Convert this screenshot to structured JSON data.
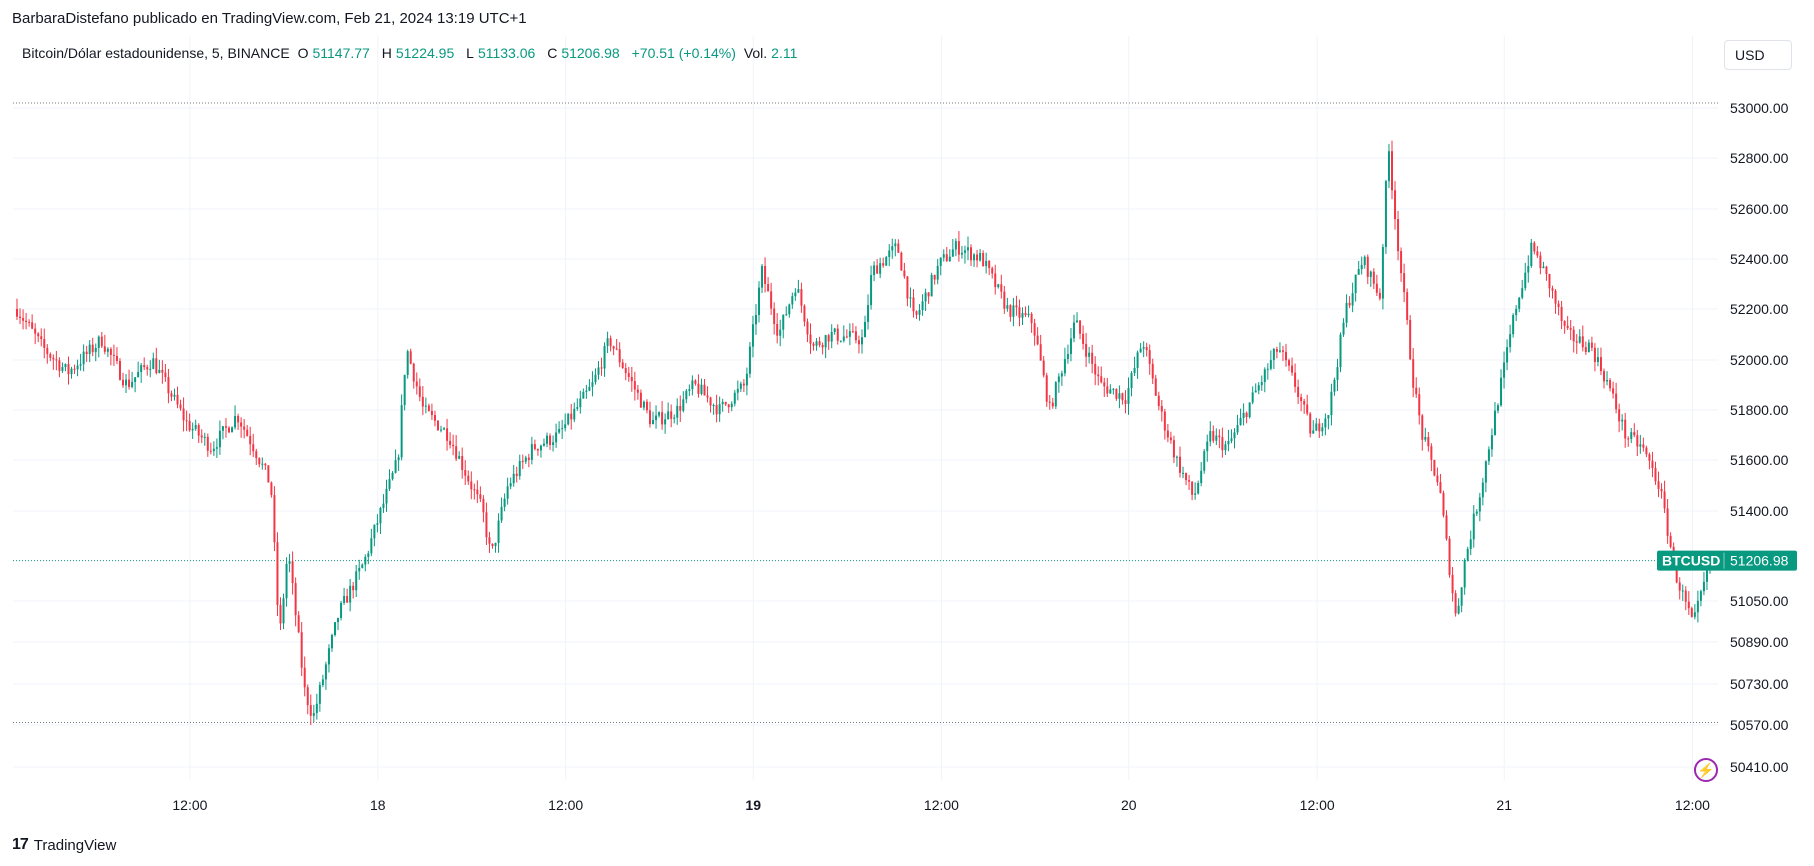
{
  "header": {
    "text": "BarbaraDistefano publicado en TradingView.com, Feb 21, 2024 13:19 UTC+1"
  },
  "legend": {
    "symbol": "Bitcoin/Dólar estadounidense, 5, BINANCE",
    "o_label": "O",
    "o_value": "51147.77",
    "h_label": "H",
    "h_value": "51224.95",
    "l_label": "L",
    "l_value": "51133.06",
    "c_label": "C",
    "c_value": "51206.98",
    "change": "+70.51 (+0.14%)",
    "vol_label": "Vol.",
    "vol_value": "2.11"
  },
  "currency_button": "USD",
  "footer": {
    "logo_mark": "17",
    "brand": "TradingView"
  },
  "price_tag": {
    "symbol": "BTCUSD",
    "price": "51206.98"
  },
  "colors": {
    "up": "#089981",
    "down": "#f23645",
    "tag": "#089981",
    "accent": "#9c27b0"
  },
  "icons": {
    "lightning": "lightning-icon"
  },
  "chart_data": {
    "type": "candlestick",
    "symbol": "BTCUSD",
    "interval": "5",
    "exchange": "BINANCE",
    "last_price": 51206.98,
    "high_line": 53020,
    "low_line": 50580,
    "y_ticks": [
      "53000.00",
      "52800.00",
      "52600.00",
      "52400.00",
      "52200.00",
      "52000.00",
      "51800.00",
      "51600.00",
      "51400.00",
      "51050.00",
      "50890.00",
      "50730.00",
      "50570.00",
      "50410.00"
    ],
    "y_tick_values": [
      53000,
      52800,
      52600,
      52400,
      52200,
      52000,
      51800,
      51600,
      51400,
      51050,
      50890,
      50730,
      50570,
      50410
    ],
    "x_ticks": [
      {
        "label": "12:00",
        "pos": 0.105,
        "bold": false
      },
      {
        "label": "18",
        "pos": 0.2165,
        "bold": false
      },
      {
        "label": "12:00",
        "pos": 0.328,
        "bold": false
      },
      {
        "label": "19",
        "pos": 0.4393,
        "bold": true
      },
      {
        "label": "12:00",
        "pos": 0.551,
        "bold": false
      },
      {
        "label": "20",
        "pos": 0.6622,
        "bold": false
      },
      {
        "label": "12:00",
        "pos": 0.774,
        "bold": false
      },
      {
        "label": "21",
        "pos": 0.885,
        "bold": false
      },
      {
        "label": "12:00",
        "pos": 0.9967,
        "bold": false
      }
    ],
    "series_keypoints": [
      [
        0.0,
        52200
      ],
      [
        0.015,
        52050
      ],
      [
        0.03,
        51950
      ],
      [
        0.05,
        52080
      ],
      [
        0.065,
        51900
      ],
      [
        0.08,
        52000
      ],
      [
        0.1,
        51750
      ],
      [
        0.115,
        51650
      ],
      [
        0.13,
        51780
      ],
      [
        0.14,
        51650
      ],
      [
        0.15,
        51500
      ],
      [
        0.155,
        50900
      ],
      [
        0.16,
        51250
      ],
      [
        0.17,
        50700
      ],
      [
        0.175,
        50600
      ],
      [
        0.19,
        51000
      ],
      [
        0.205,
        51200
      ],
      [
        0.215,
        51400
      ],
      [
        0.225,
        51600
      ],
      [
        0.23,
        52050
      ],
      [
        0.24,
        51800
      ],
      [
        0.255,
        51700
      ],
      [
        0.265,
        51550
      ],
      [
        0.275,
        51400
      ],
      [
        0.28,
        51220
      ],
      [
        0.29,
        51500
      ],
      [
        0.305,
        51650
      ],
      [
        0.32,
        51700
      ],
      [
        0.34,
        51900
      ],
      [
        0.35,
        52080
      ],
      [
        0.36,
        51950
      ],
      [
        0.375,
        51750
      ],
      [
        0.39,
        51800
      ],
      [
        0.4,
        51900
      ],
      [
        0.415,
        51800
      ],
      [
        0.43,
        51900
      ],
      [
        0.44,
        52350
      ],
      [
        0.45,
        52100
      ],
      [
        0.46,
        52300
      ],
      [
        0.47,
        52050
      ],
      [
        0.48,
        52100
      ],
      [
        0.5,
        52080
      ],
      [
        0.505,
        52350
      ],
      [
        0.52,
        52450
      ],
      [
        0.53,
        52150
      ],
      [
        0.545,
        52380
      ],
      [
        0.555,
        52450
      ],
      [
        0.57,
        52400
      ],
      [
        0.585,
        52200
      ],
      [
        0.6,
        52150
      ],
      [
        0.61,
        51800
      ],
      [
        0.625,
        52150
      ],
      [
        0.64,
        51900
      ],
      [
        0.655,
        51850
      ],
      [
        0.665,
        52080
      ],
      [
        0.675,
        51800
      ],
      [
        0.685,
        51600
      ],
      [
        0.695,
        51450
      ],
      [
        0.705,
        51700
      ],
      [
        0.715,
        51650
      ],
      [
        0.73,
        51850
      ],
      [
        0.745,
        52050
      ],
      [
        0.755,
        51900
      ],
      [
        0.765,
        51700
      ],
      [
        0.775,
        51800
      ],
      [
        0.785,
        52200
      ],
      [
        0.795,
        52400
      ],
      [
        0.805,
        52250
      ],
      [
        0.81,
        52850
      ],
      [
        0.815,
        52500
      ],
      [
        0.825,
        51900
      ],
      [
        0.83,
        51700
      ],
      [
        0.84,
        51500
      ],
      [
        0.85,
        50980
      ],
      [
        0.855,
        51200
      ],
      [
        0.865,
        51500
      ],
      [
        0.875,
        51850
      ],
      [
        0.885,
        52200
      ],
      [
        0.895,
        52450
      ],
      [
        0.905,
        52300
      ],
      [
        0.915,
        52100
      ],
      [
        0.93,
        52050
      ],
      [
        0.94,
        51900
      ],
      [
        0.95,
        51700
      ],
      [
        0.96,
        51650
      ],
      [
        0.97,
        51500
      ],
      [
        0.98,
        51150
      ],
      [
        0.99,
        50950
      ],
      [
        1.0,
        51206.98
      ]
    ]
  }
}
